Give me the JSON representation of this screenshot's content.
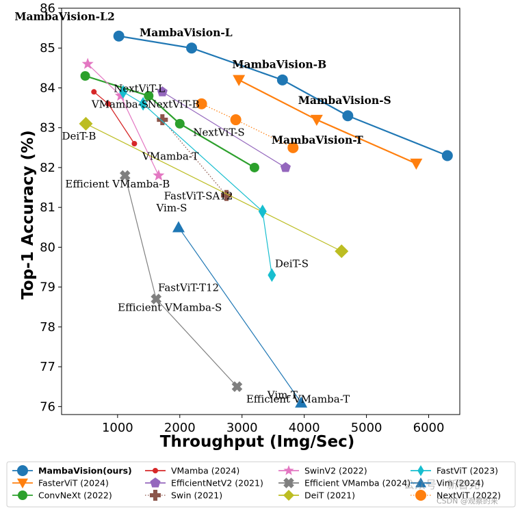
{
  "chart_data": {
    "type": "line",
    "xlabel": "Throughput (Img/Sec)",
    "ylabel": "Top-1 Accuracy (%)",
    "xlim": [
      100,
      6500
    ],
    "ylim": [
      75.8,
      86
    ],
    "xticks": [
      1000,
      2000,
      3000,
      4000,
      5000,
      6000
    ],
    "yticks": [
      76,
      77,
      78,
      79,
      80,
      81,
      82,
      83,
      84,
      85,
      86
    ],
    "series": [
      {
        "name": "MambaVision(ours)",
        "bold": true,
        "color": "#1f77b4",
        "marker": "circle",
        "line": "solid",
        "size": 8,
        "points": [
          {
            "x": 1020,
            "y": 85.3
          },
          {
            "x": 2190,
            "y": 85.0
          },
          {
            "x": 3650,
            "y": 84.2
          },
          {
            "x": 4700,
            "y": 83.3
          },
          {
            "x": 6300,
            "y": 82.3
          }
        ]
      },
      {
        "name": "FasterViT (2024)",
        "color": "#ff7f0e",
        "marker": "triangle-down",
        "line": "solid",
        "size": 9,
        "points": [
          {
            "x": 2950,
            "y": 84.2
          },
          {
            "x": 4200,
            "y": 83.2
          },
          {
            "x": 5800,
            "y": 82.1
          }
        ]
      },
      {
        "name": "ConvNeXt (2022)",
        "color": "#2ca02c",
        "marker": "circle",
        "line": "solid",
        "size": 7,
        "points": [
          {
            "x": 480,
            "y": 84.3
          },
          {
            "x": 1500,
            "y": 83.8
          },
          {
            "x": 2000,
            "y": 83.1
          },
          {
            "x": 3200,
            "y": 82.0
          }
        ]
      },
      {
        "name": "VMamba (2024)",
        "color": "#d62728",
        "marker": "circle",
        "line": "solid",
        "size": 4,
        "points": [
          {
            "x": 620,
            "y": 83.9
          },
          {
            "x": 850,
            "y": 83.6
          },
          {
            "x": 1270,
            "y": 82.6
          }
        ]
      },
      {
        "name": "EfficientNetV2 (2021)",
        "color": "#9467bd",
        "marker": "pentagon",
        "line": "solid",
        "size": 8,
        "points": [
          {
            "x": 1720,
            "y": 83.9
          },
          {
            "x": 3700,
            "y": 82.0
          }
        ]
      },
      {
        "name": "Swin (2021)",
        "color": "#8c564b",
        "marker": "plus",
        "line": "dotted",
        "size": 8,
        "points": [
          {
            "x": 1720,
            "y": 83.2
          },
          {
            "x": 2750,
            "y": 81.3
          }
        ]
      },
      {
        "name": "SwinV2 (2022)",
        "color": "#e377c2",
        "marker": "star",
        "line": "solid",
        "size": 9,
        "points": [
          {
            "x": 520,
            "y": 84.6
          },
          {
            "x": 1050,
            "y": 83.8
          },
          {
            "x": 1660,
            "y": 81.8
          }
        ]
      },
      {
        "name": "Efficient VMamba (2024)",
        "color": "#7f7f7f",
        "marker": "x",
        "line": "solid",
        "size": 8,
        "points": [
          {
            "x": 1120,
            "y": 81.8
          },
          {
            "x": 1620,
            "y": 78.7
          },
          {
            "x": 2920,
            "y": 76.5
          }
        ]
      },
      {
        "name": "DeiT (2021)",
        "color": "#bcbd22",
        "marker": "diamond",
        "line": "solid",
        "size": 10,
        "points": [
          {
            "x": 490,
            "y": 83.1
          },
          {
            "x": 4600,
            "y": 79.9
          }
        ]
      },
      {
        "name": "FastViT (2023)",
        "color": "#17becf",
        "marker": "thin-diamond",
        "line": "solid",
        "size": 10,
        "points": [
          {
            "x": 1090,
            "y": 83.9
          },
          {
            "x": 1410,
            "y": 83.6
          },
          {
            "x": 3330,
            "y": 80.9
          },
          {
            "x": 3480,
            "y": 79.3
          }
        ]
      },
      {
        "name": "Vim (2024)",
        "color": "#1f77b4",
        "marker": "triangle-up",
        "line": "solid",
        "size": 9,
        "points": [
          {
            "x": 1980,
            "y": 80.5
          },
          {
            "x": 3950,
            "y": 76.1
          }
        ]
      },
      {
        "name": "NextViT (2022)",
        "color": "#ff7f0e",
        "marker": "circle",
        "line": "dotted",
        "size": 8,
        "points": [
          {
            "x": 2350,
            "y": 83.6
          },
          {
            "x": 2900,
            "y": 83.2
          },
          {
            "x": 3820,
            "y": 82.5
          }
        ]
      }
    ],
    "annotations": [
      {
        "text": "MambaVision-L2",
        "bold": true,
        "x": 150,
        "y": 85.7
      },
      {
        "text": "MambaVision-L",
        "bold": true,
        "x": 2100,
        "y": 85.3
      },
      {
        "text": "MambaVision-B",
        "bold": true,
        "x": 3600,
        "y": 84.5
      },
      {
        "text": "MambaVision-S",
        "bold": true,
        "x": 4650,
        "y": 83.6
      },
      {
        "text": "MambaVision-T",
        "bold": true,
        "x": 4210,
        "y": 82.6
      },
      {
        "text": "NextViT-L",
        "bold": false,
        "x": 1350,
        "y": 83.9
      },
      {
        "text": "NextViT-B",
        "bold": false,
        "x": 1900,
        "y": 83.5
      },
      {
        "text": "NextViT-S",
        "bold": false,
        "x": 2630,
        "y": 82.8
      },
      {
        "text": "VMamba-S",
        "bold": false,
        "x": 1040,
        "y": 83.5
      },
      {
        "text": "DeiT-B",
        "bold": false,
        "x": 380,
        "y": 82.7
      },
      {
        "text": "VMamba-T",
        "bold": false,
        "x": 1850,
        "y": 82.2
      },
      {
        "text": "Efficient VMamba-B",
        "bold": false,
        "x": 1000,
        "y": 81.5
      },
      {
        "text": "FastViT-SA12",
        "bold": false,
        "x": 2300,
        "y": 81.2
      },
      {
        "text": "Vim-S",
        "bold": false,
        "x": 1870,
        "y": 80.9
      },
      {
        "text": "DeiT-S",
        "bold": false,
        "x": 3800,
        "y": 79.5
      },
      {
        "text": "FastViT-T12",
        "bold": false,
        "x": 2140,
        "y": 78.9
      },
      {
        "text": "Efficient VMamba-S",
        "bold": false,
        "x": 1840,
        "y": 78.4
      },
      {
        "text": "Vim-T",
        "bold": false,
        "x": 3650,
        "y": 76.2
      },
      {
        "text": "Efficient VMamba-T",
        "bold": false,
        "x": 3900,
        "y": 76.1
      }
    ]
  },
  "watermark": {
    "wechat_text": "公众号 · 新智元",
    "csdn_text": "CSDN @观察的来"
  }
}
